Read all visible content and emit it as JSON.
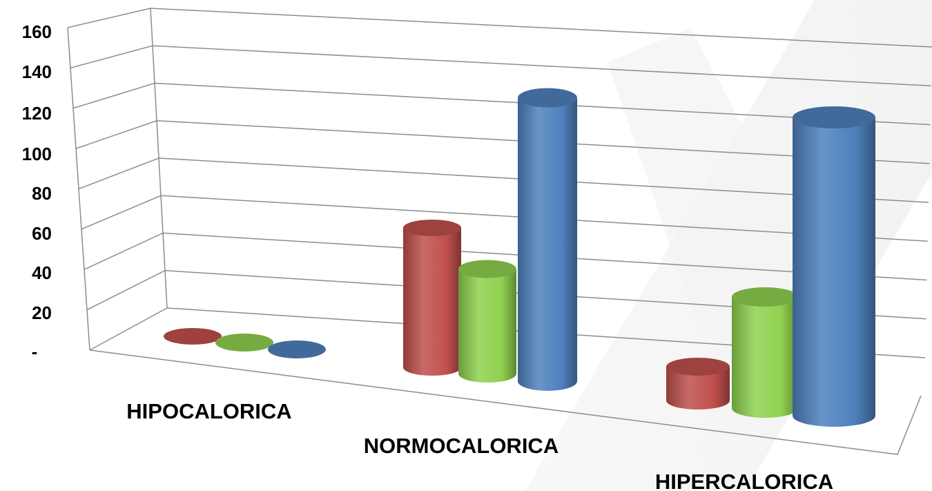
{
  "chart_data": {
    "type": "bar",
    "style": "3d-cylinder",
    "categories": [
      "HIPOCALORICA",
      "NORMOCALORICA",
      "HIPERCALORICA"
    ],
    "series": [
      {
        "color": "#c0504d",
        "values": [
          0,
          40,
          10
        ]
      },
      {
        "color": "#8fd14f",
        "values": [
          0,
          30,
          35
        ]
      },
      {
        "color": "#4f81bd",
        "values": [
          0,
          120,
          120
        ]
      }
    ],
    "y_ticks": [
      "-",
      "20",
      "40",
      "60",
      "80",
      "100",
      "120",
      "140",
      "160"
    ],
    "ylim": [
      0,
      160
    ],
    "grid": true,
    "legend": "none",
    "title": "",
    "xlabel": "",
    "ylabel": ""
  }
}
